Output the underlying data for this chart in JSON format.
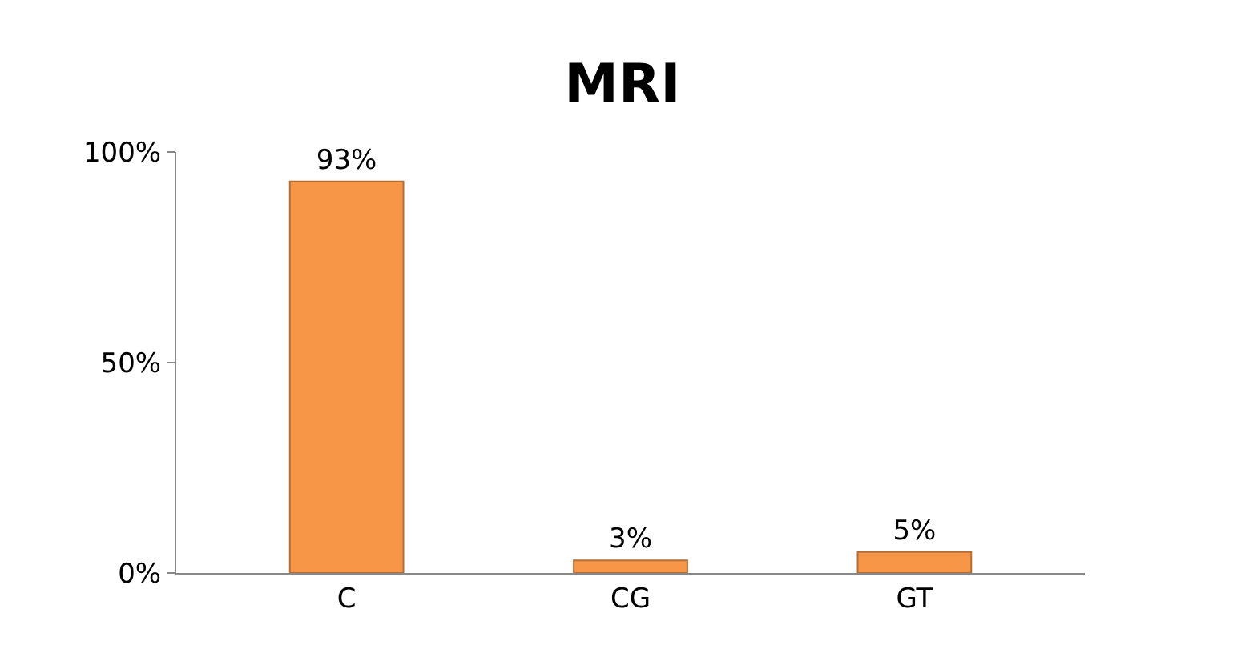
{
  "chart_data": {
    "type": "bar",
    "title": "MRI",
    "categories": [
      "C",
      "CG",
      "GT"
    ],
    "values": [
      93,
      3,
      5
    ],
    "value_labels": [
      "93%",
      "3%",
      "5%"
    ],
    "color": "#f79646",
    "ylim": [
      0,
      100
    ],
    "yticks": [
      {
        "value": 0,
        "label": "0%"
      },
      {
        "value": 50,
        "label": "50%"
      },
      {
        "value": 100,
        "label": "100%"
      }
    ]
  }
}
